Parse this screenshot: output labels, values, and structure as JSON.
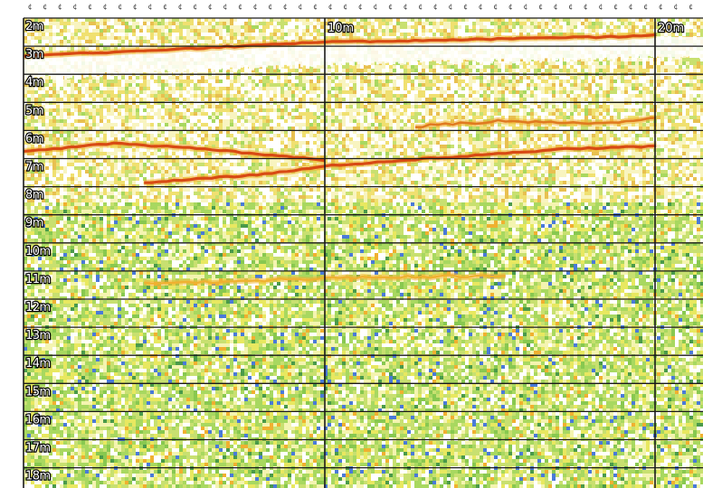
{
  "chart_data": {
    "type": "heatmap",
    "title": "",
    "y_tick_labels": [
      "2m",
      "3m",
      "4m",
      "5m",
      "6m",
      "7m",
      "8m",
      "9m",
      "10m",
      "11m",
      "12m",
      "13m",
      "14m",
      "15m",
      "16m",
      "17m",
      "18m"
    ],
    "x_tick_labels": [
      "10m",
      "20m"
    ],
    "yrange_m": [
      2,
      18.5
    ],
    "xrange_m": [
      0,
      21
    ],
    "grid": true,
    "colors": {
      "strong_echo": "#d84a14",
      "medium_echo": "#f0b030",
      "weak_echo": "#e8e860",
      "background_echo": "#a8d860",
      "noise_blue": "#4a7ad8",
      "white": "#ffffff"
    },
    "echo_layers": [
      {
        "name": "bottom_line",
        "x_m": [
          0,
          10,
          20,
          21
        ],
        "depth_m": [
          3.1,
          2.6,
          2.4,
          2.35
        ],
        "intensity": "strong"
      },
      {
        "name": "layer_6m",
        "x_m": [
          0,
          3,
          6,
          10
        ],
        "depth_m": [
          6.5,
          6.2,
          6.4,
          6.8
        ],
        "intensity": "strong"
      },
      {
        "name": "layer_7m",
        "x_m": [
          4,
          8,
          10,
          14,
          18,
          21
        ],
        "depth_m": [
          7.6,
          7.3,
          7.0,
          6.7,
          6.4,
          6.3
        ],
        "intensity": "strong"
      },
      {
        "name": "layer_5m",
        "x_m": [
          13,
          16,
          19,
          21
        ],
        "depth_m": [
          5.6,
          5.4,
          5.5,
          5.3
        ],
        "intensity": "medium"
      },
      {
        "name": "layer_11m",
        "x_m": [
          4,
          10,
          16
        ],
        "depth_m": [
          11.2,
          11.0,
          10.9
        ],
        "intensity": "weak"
      }
    ]
  }
}
